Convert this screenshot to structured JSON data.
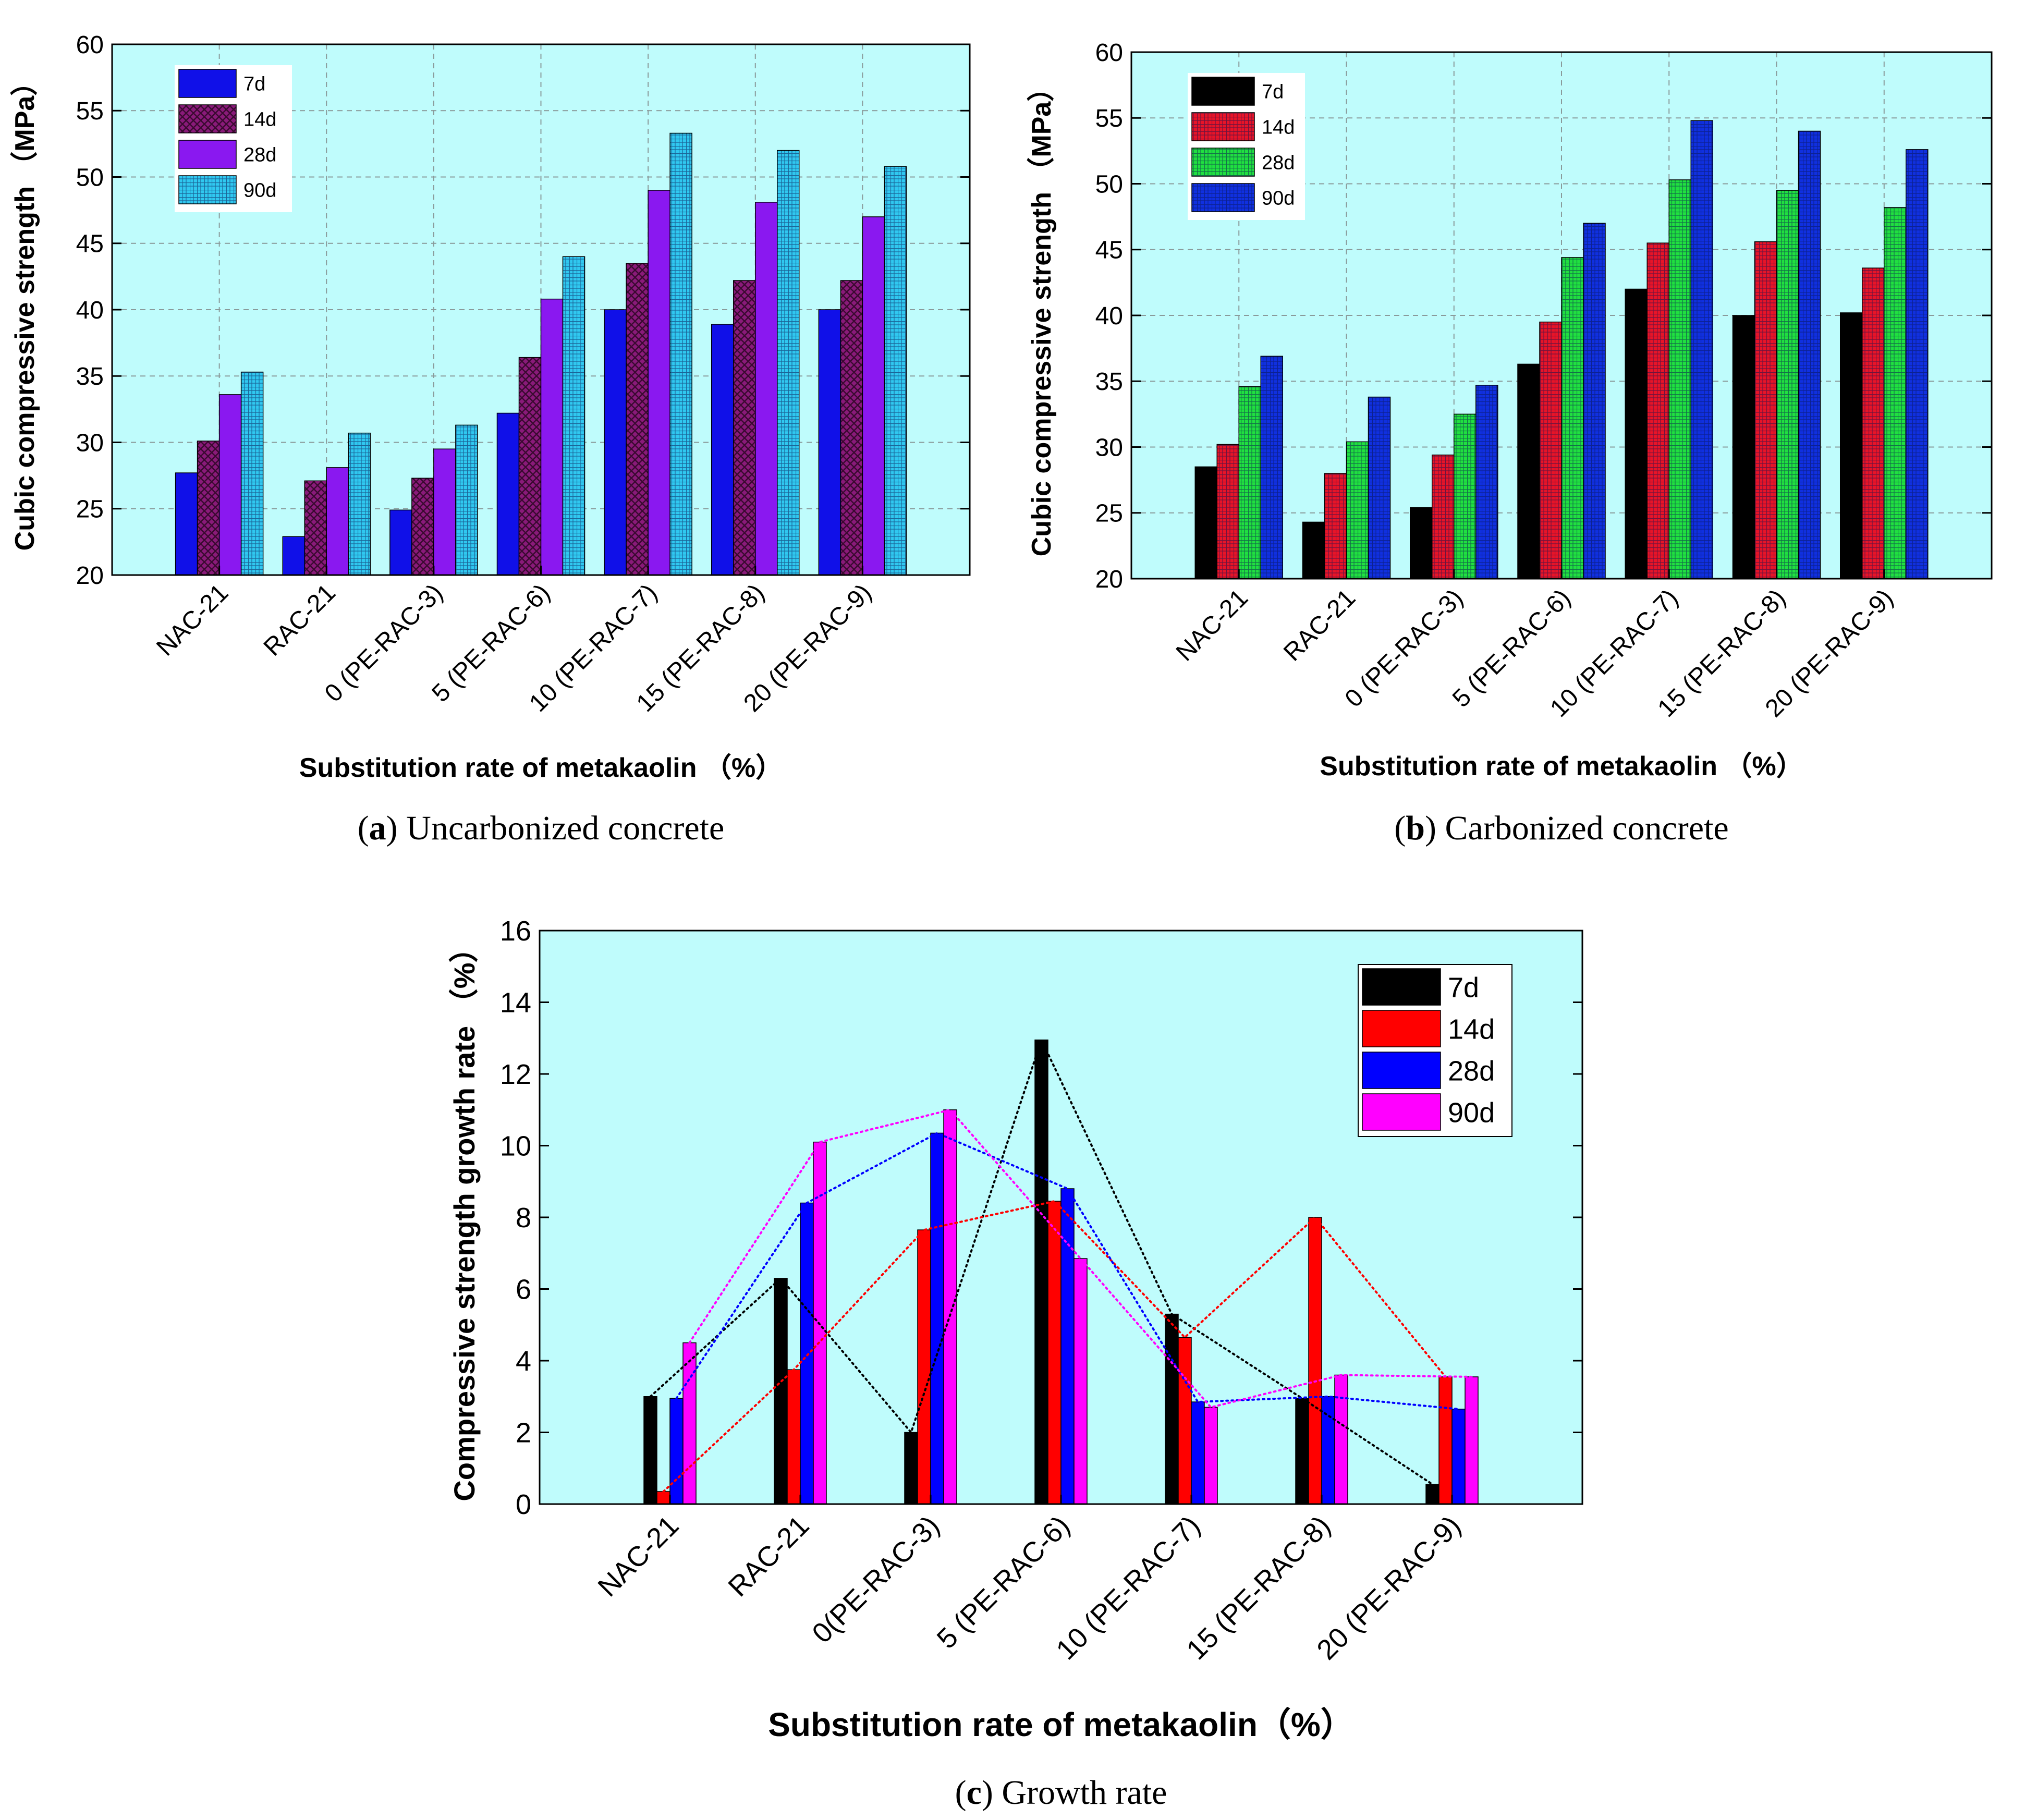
{
  "chart_data": [
    {
      "type": "bar",
      "caption_label": "a",
      "caption_text": " Uncarbonized concrete",
      "ylabel": "Cubic compressive strength （MPa）",
      "xlabel": "Substitution rate of metakaolin （%）",
      "ylim": [
        20,
        60
      ],
      "yticks": [
        20,
        25,
        30,
        35,
        40,
        45,
        50,
        55,
        60
      ],
      "grid": true,
      "legend_position": "top-left",
      "categories": [
        "NAC-21",
        "RAC-21",
        "0 (PE-RAC-3)",
        "5 (PE-RAC-6)",
        "10 (PE-RAC-7)",
        "15 (PE-RAC-8)",
        "20 (PE-RAC-9)"
      ],
      "series": [
        {
          "name": "7d",
          "color": "#1010e8",
          "pattern": "solid",
          "values": [
            27.7,
            22.9,
            24.9,
            32.2,
            40.0,
            38.9,
            40.0
          ]
        },
        {
          "name": "14d",
          "color": "#8a1a7a",
          "pattern": "crosshatch",
          "values": [
            30.1,
            27.1,
            27.3,
            36.4,
            43.5,
            42.2,
            42.2
          ]
        },
        {
          "name": "28d",
          "color": "#8a18f0",
          "pattern": "solid",
          "values": [
            33.6,
            28.1,
            29.5,
            40.8,
            49.0,
            48.1,
            47.0
          ]
        },
        {
          "name": "90d",
          "color": "#30c8f0",
          "pattern": "grid",
          "values": [
            35.3,
            30.7,
            31.3,
            44.0,
            53.3,
            52.0,
            50.8
          ]
        }
      ]
    },
    {
      "type": "bar",
      "caption_label": "b",
      "caption_text": " Carbonized concrete",
      "ylabel": "Cubic compressive strength （MPa）",
      "xlabel": "Substitution rate of metakaolin （%）",
      "ylim": [
        20,
        60
      ],
      "yticks": [
        20,
        25,
        30,
        35,
        40,
        45,
        50,
        55,
        60
      ],
      "grid": true,
      "legend_position": "top-left",
      "categories": [
        "NAC-21",
        "RAC-21",
        "0 (PE-RAC-3)",
        "5 (PE-RAC-6)",
        "10 (PE-RAC-7)",
        "15 (PE-RAC-8)",
        "20 (PE-RAC-9)"
      ],
      "series": [
        {
          "name": "7d",
          "color": "#000000",
          "pattern": "solid",
          "values": [
            28.5,
            24.3,
            25.4,
            36.3,
            42.0,
            40.0,
            40.2
          ]
        },
        {
          "name": "14d",
          "color": "#e81428",
          "pattern": "grid",
          "values": [
            30.2,
            28.0,
            29.4,
            39.5,
            45.5,
            45.6,
            43.6
          ]
        },
        {
          "name": "28d",
          "color": "#20e040",
          "pattern": "grid",
          "values": [
            34.6,
            30.4,
            32.5,
            44.4,
            50.3,
            49.5,
            48.2
          ]
        },
        {
          "name": "90d",
          "color": "#1030e0",
          "pattern": "grid",
          "values": [
            36.9,
            33.8,
            34.7,
            47.0,
            54.8,
            54.0,
            52.6
          ]
        }
      ]
    },
    {
      "type": "bar",
      "caption_label": "c",
      "caption_text": " Growth rate",
      "ylabel": "Compressive strength growth rate （%）",
      "xlabel": "Substitution rate of metakaolin（%）",
      "ylim": [
        0,
        16
      ],
      "yticks": [
        0,
        2,
        4,
        6,
        8,
        10,
        12,
        14,
        16
      ],
      "grid": false,
      "legend_position": "top-right",
      "trend_lines": "dotted",
      "categories": [
        "NAC-21",
        "RAC-21",
        "0(PE-RAC-3)",
        "5 (PE-RAC-6)",
        "10 (PE-RAC-7)",
        "15 (PE-RAC-8)",
        "20 (PE-RAC-9)"
      ],
      "series": [
        {
          "name": "7d",
          "color": "#000000",
          "values": [
            3.0,
            6.3,
            2.0,
            12.95,
            5.3,
            2.95,
            0.55
          ]
        },
        {
          "name": "14d",
          "color": "#ff0000",
          "values": [
            0.35,
            3.75,
            7.65,
            8.45,
            4.65,
            8.0,
            3.55
          ]
        },
        {
          "name": "28d",
          "color": "#0000ff",
          "values": [
            2.95,
            8.4,
            10.35,
            8.8,
            2.85,
            3.0,
            2.65
          ]
        },
        {
          "name": "90d",
          "color": "#ff00ff",
          "values": [
            4.5,
            10.1,
            11.0,
            6.85,
            2.7,
            3.6,
            3.55
          ]
        }
      ]
    }
  ]
}
